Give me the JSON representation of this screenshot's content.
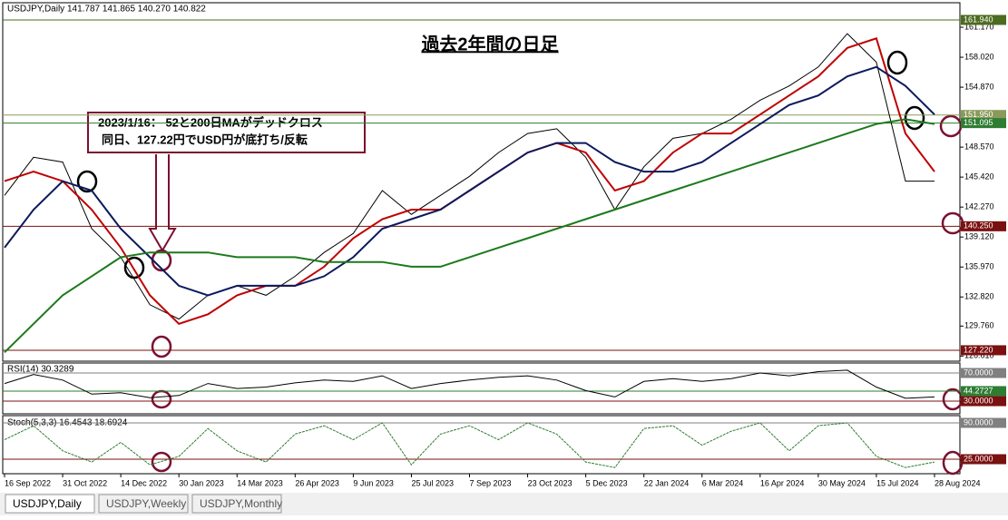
{
  "chart_data": [
    {
      "type": "line",
      "header": "USDJPY,Daily  141.787 141.865 140.270 140.822",
      "title": "過去2年間の日足",
      "annotations": [
        "2023/1/16： 52と200日MAがデッドクロス",
        "同日、127.22円でUSD円が底打ち/反転"
      ],
      "categories": [
        "16 Sep 2022",
        null,
        "31 Oct 2022",
        null,
        "14 Dec 2022",
        null,
        "30 Jan 2023",
        null,
        "14 Mar 2023",
        null,
        "26 Apr 2023",
        null,
        "9 Jun 2023",
        null,
        "25 Jul 2023",
        null,
        "7 Sep 2023",
        null,
        "23 Oct 2023",
        null,
        "5 Dec 2023",
        null,
        "22 Jan 2024",
        null,
        "6 Mar 2024",
        null,
        "16 Apr 2024",
        null,
        "30 May 2024",
        null,
        "15 Jul 2024",
        null,
        "28 Aug 2024"
      ],
      "series": [
        {
          "color": "#000000",
          "values": [
            143.5,
            147.5,
            147.0,
            140.0,
            137.0,
            132.0,
            130.5,
            133.0,
            134.0,
            133.0,
            135.0,
            137.5,
            139.5,
            144.0,
            141.5,
            143.5,
            145.5,
            148.0,
            150.0,
            150.5,
            147.5,
            142.0,
            146.5,
            149.5,
            150.0,
            151.5,
            153.5,
            155.0,
            157.0,
            160.5,
            157.5,
            145.0,
            145.0
          ]
        },
        {
          "color": "#c00000",
          "values": [
            145,
            146,
            145,
            142,
            138,
            133,
            130,
            131,
            133,
            134,
            134,
            136,
            139,
            141,
            142,
            142,
            144,
            146,
            148,
            149,
            148,
            144,
            145,
            148,
            150,
            150,
            152,
            154,
            156,
            159,
            160,
            150,
            146
          ]
        },
        {
          "color": "#0b1a5c",
          "values": [
            138,
            142,
            145,
            144,
            140,
            137,
            134,
            133,
            134,
            134,
            134,
            135,
            137,
            140,
            141,
            142,
            144,
            146,
            148,
            149,
            149,
            147,
            146,
            146,
            147,
            149,
            151,
            153,
            154,
            156,
            157,
            155,
            152
          ]
        },
        {
          "color": "#1b7a1b",
          "values": [
            127,
            130,
            133,
            135,
            137,
            137.5,
            137.5,
            137.5,
            137,
            137,
            137,
            136.5,
            136.5,
            136.5,
            136,
            136,
            137,
            138,
            139,
            140,
            141,
            142,
            143,
            144,
            145,
            146,
            147,
            148,
            149,
            150,
            151,
            151.5,
            151
          ]
        }
      ],
      "ylim": [
        126.07,
        162.7
      ],
      "yticks": [
        {
          "value": 161.17,
          "label": "161.170"
        },
        {
          "value": 158.02,
          "label": "158.020"
        },
        {
          "value": 154.87,
          "label": "154.870"
        },
        {
          "value": 148.57,
          "label": "148.570"
        },
        {
          "value": 145.42,
          "label": "145.420"
        },
        {
          "value": 142.27,
          "label": "142.270"
        },
        {
          "value": 139.12,
          "label": "139.120"
        },
        {
          "value": 135.97,
          "label": "135.970"
        },
        {
          "value": 132.82,
          "label": "132.820"
        },
        {
          "value": 129.76,
          "label": "129.760"
        },
        {
          "value": 126.61,
          "label": "126.610"
        }
      ],
      "hlines": [
        {
          "value": 161.94,
          "label": "161.940",
          "color": "#4d6b1f"
        },
        {
          "value": 151.95,
          "label": "151.950",
          "color": "#8a9a5b"
        },
        {
          "value": 151.095,
          "label": "151.095",
          "color": "#2e7d32"
        },
        {
          "value": 140.25,
          "label": "140.250",
          "color": "#7a1010"
        },
        {
          "value": 127.22,
          "label": "127.220",
          "color": "#7a1010"
        }
      ]
    },
    {
      "type": "line",
      "title": "RSI(14) 30.3289",
      "series": [
        {
          "color": "#000000",
          "values": [
            55,
            68,
            60,
            40,
            42,
            35,
            38,
            55,
            48,
            50,
            56,
            60,
            58,
            66,
            48,
            55,
            60,
            64,
            66,
            60,
            45,
            36,
            58,
            62,
            58,
            62,
            70,
            66,
            72,
            74,
            50,
            34,
            36
          ]
        }
      ],
      "ylim": [
        12,
        84.2
      ],
      "hlines": [
        {
          "value": 70,
          "label": "70.0000",
          "color": "#808080"
        },
        {
          "value": 44.2727,
          "label": "44.2727",
          "color": "#2e7d32"
        },
        {
          "value": 30,
          "label": "30.0000",
          "color": "#7a1010"
        }
      ]
    },
    {
      "type": "line",
      "title": "Stoch(5,3,3) 16.4543 18.6924",
      "series": [
        {
          "color": "#2e7d32",
          "values": [
            60,
            85,
            40,
            20,
            55,
            15,
            30,
            80,
            40,
            20,
            70,
            85,
            60,
            90,
            15,
            70,
            85,
            60,
            90,
            70,
            20,
            10,
            80,
            85,
            50,
            75,
            90,
            40,
            85,
            90,
            30,
            10,
            20
          ]
        }
      ],
      "ylim": [
        -1,
        103
      ],
      "hlines": [
        {
          "value": 90,
          "label": "90.0000",
          "color": "#808080"
        },
        {
          "value": 25,
          "label": "25.0000",
          "color": "#7a1010"
        }
      ]
    }
  ],
  "tabs": [
    "USDJPY,Daily",
    "USDJPY,Weekly",
    "USDJPY,Monthly"
  ]
}
